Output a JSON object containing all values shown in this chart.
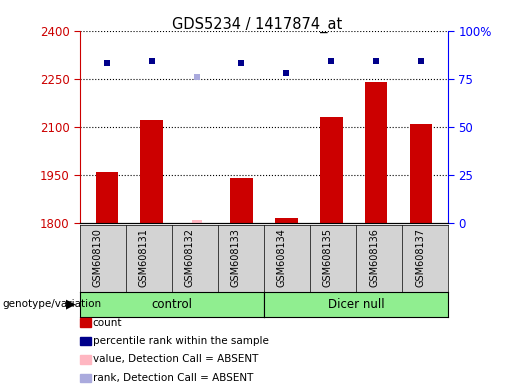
{
  "title": "GDS5234 / 1417874_at",
  "samples": [
    "GSM608130",
    "GSM608131",
    "GSM608132",
    "GSM608133",
    "GSM608134",
    "GSM608135",
    "GSM608136",
    "GSM608137"
  ],
  "bar_values": [
    1960,
    2120,
    null,
    1940,
    1815,
    2130,
    2240,
    2110
  ],
  "bar_absent_values": [
    null,
    null,
    1810,
    null,
    null,
    null,
    null,
    null
  ],
  "rank_values": [
    83,
    84,
    null,
    83,
    78,
    84,
    84,
    84
  ],
  "rank_absent_values": [
    null,
    null,
    76,
    null,
    null,
    null,
    null,
    null
  ],
  "ylim_left": [
    1800,
    2400
  ],
  "ylim_right": [
    0,
    100
  ],
  "yticks_left": [
    1800,
    1950,
    2100,
    2250,
    2400
  ],
  "yticks_right": [
    0,
    25,
    50,
    75,
    100
  ],
  "ytick_right_labels": [
    "0",
    "25",
    "50",
    "75",
    "100%"
  ],
  "bar_color": "#CC0000",
  "bar_absent_color": "#FFB6C1",
  "rank_color": "#00008B",
  "rank_absent_color": "#AAAADD",
  "bg_color": "#D3D3D3",
  "plot_bg": "#FFFFFF",
  "dotted_line_color": "#000000",
  "rank_marker_size": 5,
  "bar_width": 0.5,
  "legend_items": [
    {
      "label": "count",
      "color": "#CC0000"
    },
    {
      "label": "percentile rank within the sample",
      "color": "#00008B"
    },
    {
      "label": "value, Detection Call = ABSENT",
      "color": "#FFB6C1"
    },
    {
      "label": "rank, Detection Call = ABSENT",
      "color": "#AAAADD"
    }
  ],
  "genotype_label": "genotype/variation",
  "control_label": "control",
  "dicer_label": "Dicer null",
  "group_color": "#90EE90"
}
